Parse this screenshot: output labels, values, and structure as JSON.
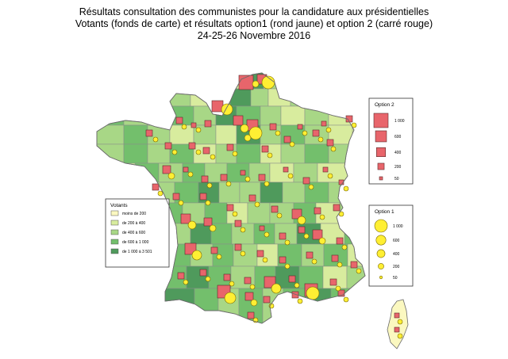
{
  "title": {
    "line1": "Résultats consultation des communistes pour la candidature aux présidentielles",
    "line2": "Votants (fonds de carte) et résultats option1 (rond jaune) et option 2 (carré rouge)",
    "line3": "24-25-26 Novembre 2016"
  },
  "colors": {
    "class1": "#fbf8c0",
    "class2": "#d8ec9e",
    "class3": "#a8d786",
    "class4": "#73bf6c",
    "class5": "#4f9a5c",
    "option1": "#ffef33",
    "option2": "#e8656b",
    "border": "#8a8a8a"
  },
  "legend_votants": {
    "title": "Votants",
    "items": [
      {
        "label": "moins de 200",
        "color": "#fbf8c0"
      },
      {
        "label": "de 200 à 400",
        "color": "#d8ec9e"
      },
      {
        "label": "de 400 à 600",
        "color": "#a8d786"
      },
      {
        "label": "de 600 à 1 000",
        "color": "#73bf6c"
      },
      {
        "label": "de 1 000 à 3 501",
        "color": "#4f9a5c"
      }
    ]
  },
  "legend_option1": {
    "title": "Option 1",
    "items": [
      {
        "label": "1 000",
        "value": 1000
      },
      {
        "label": "600",
        "value": 600
      },
      {
        "label": "400",
        "value": 400
      },
      {
        "label": "200",
        "value": 200
      },
      {
        "label": "50",
        "value": 50
      }
    ]
  },
  "legend_option2": {
    "title": "Option 2",
    "items": [
      {
        "label": "1 000",
        "value": 1000
      },
      {
        "label": "600",
        "value": 600
      },
      {
        "label": "400",
        "value": 400
      },
      {
        "label": "200",
        "value": 200
      },
      {
        "label": "50",
        "value": 50
      }
    ]
  }
}
